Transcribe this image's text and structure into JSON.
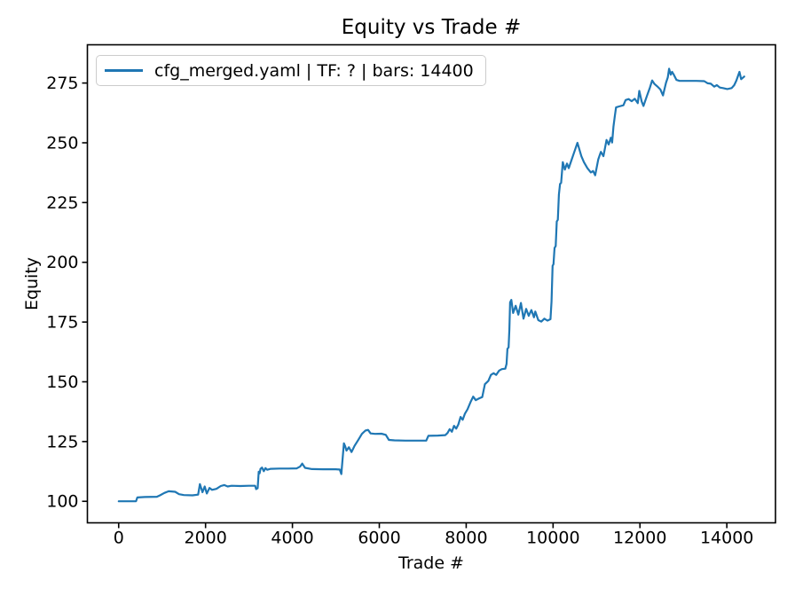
{
  "chart_data": {
    "type": "line",
    "title": "Equity vs Trade #",
    "xlabel": "Trade #",
    "ylabel": "Equity",
    "legend_position": "upper left",
    "grid": false,
    "line_color": "#1f77b4",
    "background_color": "#ffffff",
    "xlim": [
      -720,
      15120
    ],
    "ylim": [
      91,
      291
    ],
    "x_ticks": [
      0,
      2000,
      4000,
      6000,
      8000,
      10000,
      12000,
      14000
    ],
    "y_ticks": [
      100,
      125,
      150,
      175,
      200,
      225,
      250,
      275
    ],
    "series": [
      {
        "name": "cfg_merged.yaml | TF: ? | bars: 14400",
        "points": [
          [
            0,
            100
          ],
          [
            150,
            100
          ],
          [
            300,
            100
          ],
          [
            400,
            100
          ],
          [
            430,
            101.6
          ],
          [
            600,
            101.8
          ],
          [
            880,
            101.9
          ],
          [
            950,
            102.5
          ],
          [
            1050,
            103.5
          ],
          [
            1150,
            104.2
          ],
          [
            1300,
            104.0
          ],
          [
            1390,
            103.0
          ],
          [
            1500,
            102.6
          ],
          [
            1700,
            102.5
          ],
          [
            1830,
            102.8
          ],
          [
            1870,
            107.2
          ],
          [
            1930,
            103.8
          ],
          [
            1980,
            106.2
          ],
          [
            2030,
            103.3
          ],
          [
            2090,
            105.6
          ],
          [
            2150,
            104.8
          ],
          [
            2250,
            105.2
          ],
          [
            2350,
            106.4
          ],
          [
            2430,
            106.8
          ],
          [
            2510,
            106.2
          ],
          [
            2600,
            106.5
          ],
          [
            2800,
            106.4
          ],
          [
            3000,
            106.5
          ],
          [
            3140,
            106.5
          ],
          [
            3165,
            105.1
          ],
          [
            3200,
            105.5
          ],
          [
            3225,
            112.4
          ],
          [
            3245,
            111.7
          ],
          [
            3265,
            113.6
          ],
          [
            3300,
            114.1
          ],
          [
            3340,
            112.6
          ],
          [
            3380,
            113.9
          ],
          [
            3420,
            113.2
          ],
          [
            3500,
            113.6
          ],
          [
            3700,
            113.7
          ],
          [
            3900,
            113.7
          ],
          [
            4100,
            113.8
          ],
          [
            4180,
            114.6
          ],
          [
            4225,
            115.8
          ],
          [
            4290,
            114.0
          ],
          [
            4450,
            113.5
          ],
          [
            4700,
            113.4
          ],
          [
            5000,
            113.4
          ],
          [
            5090,
            113.3
          ],
          [
            5125,
            111.4
          ],
          [
            5160,
            119.0
          ],
          [
            5185,
            124.3
          ],
          [
            5215,
            123.0
          ],
          [
            5245,
            121.2
          ],
          [
            5300,
            122.6
          ],
          [
            5360,
            120.6
          ],
          [
            5430,
            123.2
          ],
          [
            5520,
            125.8
          ],
          [
            5600,
            128.2
          ],
          [
            5680,
            129.6
          ],
          [
            5740,
            129.9
          ],
          [
            5800,
            128.4
          ],
          [
            5900,
            128.2
          ],
          [
            6050,
            128.3
          ],
          [
            6150,
            127.8
          ],
          [
            6220,
            125.7
          ],
          [
            6350,
            125.5
          ],
          [
            6600,
            125.4
          ],
          [
            6900,
            125.4
          ],
          [
            7080,
            125.4
          ],
          [
            7130,
            127.4
          ],
          [
            7350,
            127.5
          ],
          [
            7520,
            127.7
          ],
          [
            7570,
            128.6
          ],
          [
            7620,
            130.2
          ],
          [
            7670,
            129.1
          ],
          [
            7720,
            131.6
          ],
          [
            7770,
            130.4
          ],
          [
            7820,
            132.2
          ],
          [
            7870,
            135.3
          ],
          [
            7920,
            134.1
          ],
          [
            7970,
            136.6
          ],
          [
            8030,
            138.5
          ],
          [
            8100,
            141.5
          ],
          [
            8160,
            143.8
          ],
          [
            8220,
            142.3
          ],
          [
            8300,
            143.1
          ],
          [
            8370,
            143.6
          ],
          [
            8430,
            149.0
          ],
          [
            8510,
            150.4
          ],
          [
            8570,
            152.9
          ],
          [
            8630,
            153.6
          ],
          [
            8690,
            152.9
          ],
          [
            8760,
            154.7
          ],
          [
            8820,
            155.3
          ],
          [
            8900,
            155.5
          ],
          [
            8930,
            157.5
          ],
          [
            8950,
            163.8
          ],
          [
            8975,
            164.4
          ],
          [
            8995,
            172.0
          ],
          [
            9010,
            183.2
          ],
          [
            9040,
            184.3
          ],
          [
            9080,
            178.8
          ],
          [
            9140,
            181.8
          ],
          [
            9200,
            178.1
          ],
          [
            9260,
            183.0
          ],
          [
            9320,
            176.4
          ],
          [
            9380,
            180.5
          ],
          [
            9440,
            177.6
          ],
          [
            9500,
            180.0
          ],
          [
            9560,
            177.0
          ],
          [
            9590,
            179.4
          ],
          [
            9660,
            175.8
          ],
          [
            9730,
            175.2
          ],
          [
            9800,
            176.4
          ],
          [
            9870,
            175.6
          ],
          [
            9940,
            176.2
          ],
          [
            9965,
            183.6
          ],
          [
            9990,
            198.5
          ],
          [
            10010,
            199.2
          ],
          [
            10035,
            206.0
          ],
          [
            10060,
            206.8
          ],
          [
            10085,
            217.1
          ],
          [
            10110,
            217.8
          ],
          [
            10135,
            228.3
          ],
          [
            10160,
            232.8
          ],
          [
            10185,
            233.2
          ],
          [
            10225,
            241.9
          ],
          [
            10270,
            238.8
          ],
          [
            10320,
            241.3
          ],
          [
            10360,
            239.4
          ],
          [
            10430,
            243.1
          ],
          [
            10490,
            246.2
          ],
          [
            10560,
            250.0
          ],
          [
            10650,
            244.4
          ],
          [
            10710,
            241.9
          ],
          [
            10790,
            239.4
          ],
          [
            10870,
            237.6
          ],
          [
            10920,
            238.2
          ],
          [
            10970,
            236.4
          ],
          [
            11040,
            243.1
          ],
          [
            11100,
            246.2
          ],
          [
            11160,
            244.4
          ],
          [
            11230,
            251.2
          ],
          [
            11280,
            249.3
          ],
          [
            11330,
            252.1
          ],
          [
            11360,
            250.1
          ],
          [
            11390,
            256.8
          ],
          [
            11420,
            261.1
          ],
          [
            11450,
            264.8
          ],
          [
            11520,
            265.2
          ],
          [
            11620,
            265.7
          ],
          [
            11670,
            267.9
          ],
          [
            11740,
            268.3
          ],
          [
            11810,
            267.4
          ],
          [
            11880,
            268.4
          ],
          [
            11950,
            266.6
          ],
          [
            11985,
            271.7
          ],
          [
            12040,
            267.3
          ],
          [
            12080,
            265.4
          ],
          [
            12160,
            269.6
          ],
          [
            12230,
            273.1
          ],
          [
            12280,
            276.1
          ],
          [
            12330,
            274.7
          ],
          [
            12400,
            273.6
          ],
          [
            12470,
            272.3
          ],
          [
            12530,
            269.8
          ],
          [
            12600,
            275.1
          ],
          [
            12640,
            277.3
          ],
          [
            12670,
            281.0
          ],
          [
            12710,
            278.5
          ],
          [
            12740,
            279.7
          ],
          [
            12780,
            278.5
          ],
          [
            12840,
            276.3
          ],
          [
            12910,
            275.9
          ],
          [
            13100,
            275.9
          ],
          [
            13300,
            275.9
          ],
          [
            13480,
            275.8
          ],
          [
            13560,
            274.9
          ],
          [
            13630,
            274.7
          ],
          [
            13710,
            273.5
          ],
          [
            13770,
            274.1
          ],
          [
            13840,
            273.1
          ],
          [
            13910,
            272.9
          ],
          [
            14010,
            272.5
          ],
          [
            14110,
            272.9
          ],
          [
            14170,
            274.1
          ],
          [
            14220,
            276.0
          ],
          [
            14290,
            279.7
          ],
          [
            14330,
            276.6
          ],
          [
            14400,
            277.7
          ]
        ]
      }
    ]
  }
}
